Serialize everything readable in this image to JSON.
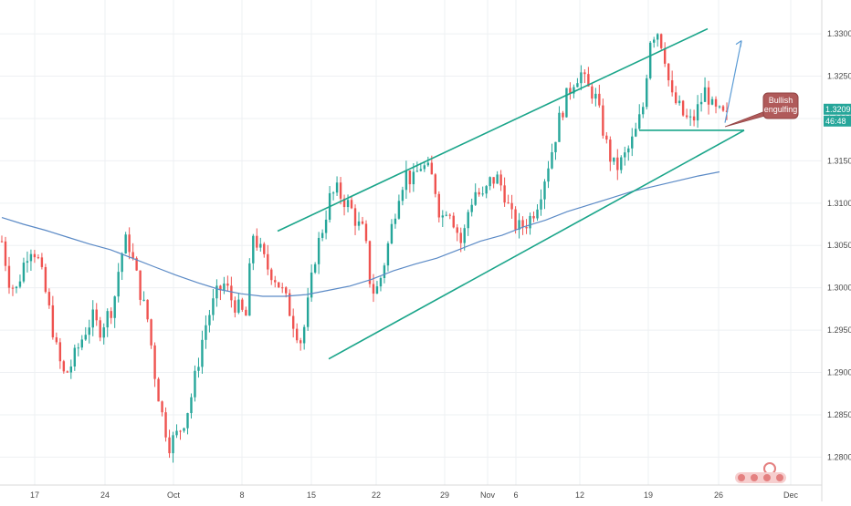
{
  "chart_data": {
    "type": "candlestick",
    "price_axis": {
      "ticks": [
        "1.33000",
        "1.32500",
        "1.32000",
        "1.31500",
        "1.31000",
        "1.30500",
        "1.30000",
        "1.29500",
        "1.29000",
        "1.28500",
        "1.28000"
      ],
      "tick_values": [
        1.33,
        1.325,
        1.32,
        1.315,
        1.31,
        1.305,
        1.3,
        1.295,
        1.29,
        1.285,
        1.28
      ],
      "ylim": [
        1.2767,
        1.334
      ]
    },
    "time_axis": {
      "labels": [
        "17",
        "24",
        "Oct",
        "8",
        "15",
        "22",
        "29",
        "Nov",
        "6",
        "12",
        "19",
        "26",
        "Dec"
      ]
    },
    "last_price": "1.32099",
    "countdown": "46:48",
    "annotation": "Bullish engulfing",
    "colors": {
      "up": "#26a69a",
      "down": "#ef5350",
      "ma": "#5b8ac6",
      "channel": "#1aa58a",
      "arrow": "#5b9bd5",
      "annotation_fill": "#b05a5a",
      "badge": "#26a69a",
      "grid": "#eef0f3"
    },
    "series": [
      {
        "name": "",
        "role": "price_path",
        "values": [
          1.3055,
          1.301,
          1.2995,
          1.3025,
          1.305,
          1.304,
          1.3005,
          1.2965,
          1.292,
          1.2895,
          1.291,
          1.293,
          1.295,
          1.2965,
          1.295,
          1.2965,
          1.298,
          1.3035,
          1.306,
          1.3025,
          1.299,
          1.296,
          1.2895,
          1.285,
          1.2815,
          1.2825,
          1.284,
          1.2865,
          1.2905,
          1.295,
          1.2975,
          1.2995,
          1.3005,
          1.2985,
          1.2975,
          1.2965,
          1.3065,
          1.3045,
          1.3025,
          1.3015,
          1.3,
          1.298,
          1.2955,
          1.2935,
          1.2985,
          1.304,
          1.307,
          1.3105,
          1.3115,
          1.3105,
          1.3095,
          1.3075,
          1.3065,
          1.2995,
          1.3,
          1.3035,
          1.3075,
          1.3115,
          1.3135,
          1.3125,
          1.3145,
          1.314,
          1.3125,
          1.308,
          1.31,
          1.3075,
          1.305,
          1.3095,
          1.3115,
          1.3105,
          1.3125,
          1.313,
          1.3115,
          1.3085,
          1.307,
          1.3075,
          1.3085,
          1.3105,
          1.3135,
          1.3165,
          1.32,
          1.3225,
          1.3245,
          1.3255,
          1.3235,
          1.323,
          1.3195,
          1.316,
          1.314,
          1.315,
          1.3165,
          1.3185,
          1.3215,
          1.3295,
          1.3305,
          1.328,
          1.3225,
          1.3215,
          1.32,
          1.3195,
          1.3215,
          1.3235,
          1.321,
          1.3205,
          1.32
        ]
      },
      {
        "name": "",
        "role": "moving_average",
        "values": [
          1.3083,
          1.3075,
          1.3068,
          1.306,
          1.3052,
          1.3045,
          1.3035,
          1.3025,
          1.3015,
          1.3006,
          1.2998,
          1.2993,
          1.299,
          1.299,
          1.2992,
          1.2997,
          1.3002,
          1.301,
          1.302,
          1.3028,
          1.3035,
          1.3045,
          1.3055,
          1.3062,
          1.3072,
          1.308,
          1.309,
          1.3098,
          1.3106,
          1.3114,
          1.312,
          1.3126,
          1.3132,
          1.3137
        ]
      }
    ],
    "channel": {
      "upper": [
        [
          0,
          1.3067
        ],
        [
          1,
          1.3306
        ]
      ],
      "lower": [
        [
          0,
          1.2916
        ],
        [
          1,
          1.3186
        ]
      ],
      "horizontal": 1.3186
    },
    "xlabel": "",
    "ylabel": "",
    "grid": true
  }
}
